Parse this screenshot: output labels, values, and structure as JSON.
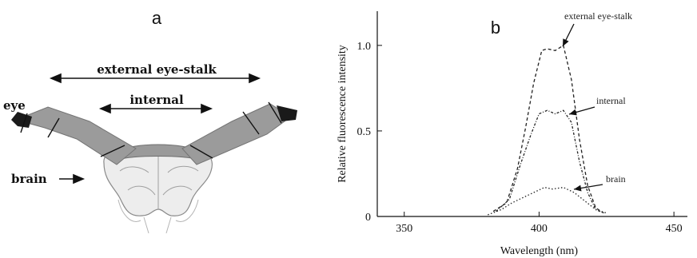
{
  "panel_a": {
    "letter": "a",
    "labels": {
      "eye": "eye",
      "external": "external eye-stalk",
      "internal": "internal",
      "brain": "brain"
    }
  },
  "panel_b": {
    "letter": "b"
  },
  "chart_data": {
    "type": "line",
    "xlabel": "Wavelength (nm)",
    "ylabel": "Relative fluorescence intensity",
    "xlim": [
      340,
      455
    ],
    "ylim": [
      0,
      1.2
    ],
    "xticks": [
      350,
      400,
      450
    ],
    "yticks": [
      0,
      0.5,
      1.0
    ],
    "xtick_labels": [
      "350",
      "400",
      "450"
    ],
    "ytick_labels": [
      "0",
      "0.5",
      "1.0"
    ],
    "grid": false,
    "series": [
      {
        "name": "external eye-stalk",
        "style": "dashed",
        "x": [
          383,
          388,
          392,
          395,
          398,
          401,
          403,
          406,
          409,
          412,
          415,
          418,
          421,
          424
        ],
        "y": [
          0.03,
          0.08,
          0.28,
          0.52,
          0.78,
          0.97,
          0.98,
          0.97,
          1.0,
          0.8,
          0.45,
          0.18,
          0.05,
          0.02
        ]
      },
      {
        "name": "internal",
        "style": "dotted-dashed",
        "x": [
          384,
          389,
          393,
          397,
          400,
          403,
          406,
          409,
          412,
          415,
          418,
          421,
          424
        ],
        "y": [
          0.03,
          0.1,
          0.3,
          0.48,
          0.6,
          0.62,
          0.6,
          0.62,
          0.55,
          0.32,
          0.14,
          0.04,
          0.02
        ]
      },
      {
        "name": "brain",
        "style": "dotted",
        "x": [
          381,
          386,
          390,
          394,
          398,
          402,
          405,
          409,
          413,
          417,
          421,
          425
        ],
        "y": [
          0.01,
          0.04,
          0.08,
          0.11,
          0.14,
          0.17,
          0.16,
          0.17,
          0.14,
          0.09,
          0.04,
          0.02
        ]
      }
    ],
    "annotations": [
      {
        "text": "external eye-stalk",
        "series": "external eye-stalk"
      },
      {
        "text": "internal",
        "series": "internal"
      },
      {
        "text": "brain",
        "series": "brain"
      }
    ]
  }
}
